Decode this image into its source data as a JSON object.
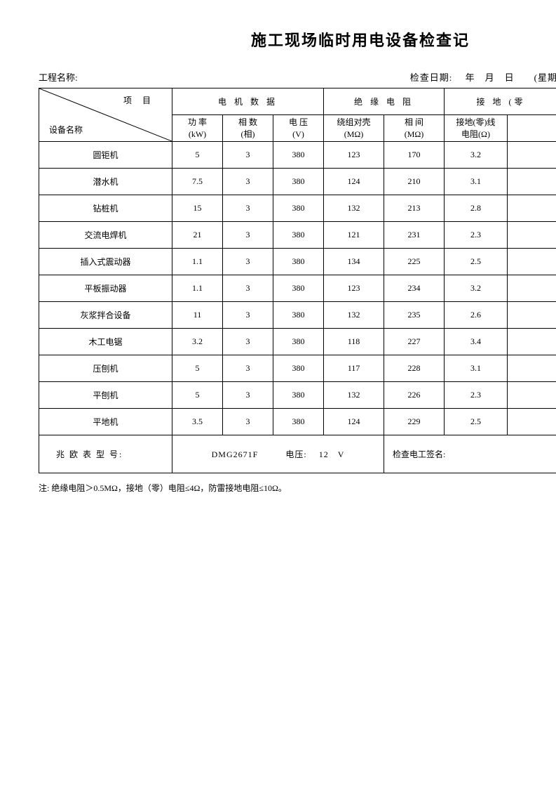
{
  "title": "施工现场临时用电设备检查记",
  "meta": {
    "project_label": "工程名称:",
    "date_label": "检查日期:　 年　月　日　　(星期"
  },
  "headers": {
    "diag_top": "项 目",
    "diag_bottom": "设备名称",
    "motor_group": "电 机 数 据",
    "insulation_group": "绝 缘 电 阻",
    "ground_group": "接 地 (零",
    "power_l1": "功 率",
    "power_l2": "(kW)",
    "phase_l1": "相 数",
    "phase_l2": "(相)",
    "voltage_l1": "电 压",
    "voltage_l2": "(V)",
    "winding_l1": "绕组对壳",
    "winding_l2": "(MΩ)",
    "inter_l1": "相 间",
    "inter_l2": "(MΩ)",
    "gnd_l1": "接地(零)线",
    "gnd_l2": "电阻(Ω)"
  },
  "rows": [
    {
      "name": "圆钜机",
      "pw": "5",
      "ph": "3",
      "v": "380",
      "w": "123",
      "i": "170",
      "g": "3.2"
    },
    {
      "name": "潜水机",
      "pw": "7.5",
      "ph": "3",
      "v": "380",
      "w": "124",
      "i": "210",
      "g": "3.1"
    },
    {
      "name": "钻桩机",
      "pw": "15",
      "ph": "3",
      "v": "380",
      "w": "132",
      "i": "213",
      "g": "2.8"
    },
    {
      "name": "交流电焊机",
      "pw": "21",
      "ph": "3",
      "v": "380",
      "w": "121",
      "i": "231",
      "g": "2.3"
    },
    {
      "name": "插入式震动器",
      "pw": "1.1",
      "ph": "3",
      "v": "380",
      "w": "134",
      "i": "225",
      "g": "2.5"
    },
    {
      "name": "平板振动器",
      "pw": "1.1",
      "ph": "3",
      "v": "380",
      "w": "123",
      "i": "234",
      "g": "3.2"
    },
    {
      "name": "灰浆拌合设备",
      "pw": "11",
      "ph": "3",
      "v": "380",
      "w": "132",
      "i": "235",
      "g": "2.6"
    },
    {
      "name": "木工电锯",
      "pw": "3.2",
      "ph": "3",
      "v": "380",
      "w": "118",
      "i": "227",
      "g": "3.4"
    },
    {
      "name": "压刨机",
      "pw": "5",
      "ph": "3",
      "v": "380",
      "w": "117",
      "i": "228",
      "g": "3.1"
    },
    {
      "name": "平刨机",
      "pw": "5",
      "ph": "3",
      "v": "380",
      "w": "132",
      "i": "226",
      "g": "2.3"
    },
    {
      "name": "平地机",
      "pw": "3.5",
      "ph": "3",
      "v": "380",
      "w": "124",
      "i": "229",
      "g": "2.5"
    }
  ],
  "footer": {
    "label": "兆 欧 表 型 号:",
    "model": "DMG2671F",
    "volt_label": "电压:",
    "volt_value": "12",
    "volt_unit": "V",
    "sign_label": "检查电工签名:"
  },
  "note": "注: 绝缘电阻＞0.5MΩ，接地（零）电阻≤4Ω，防雷接地电阻≤10Ω。"
}
